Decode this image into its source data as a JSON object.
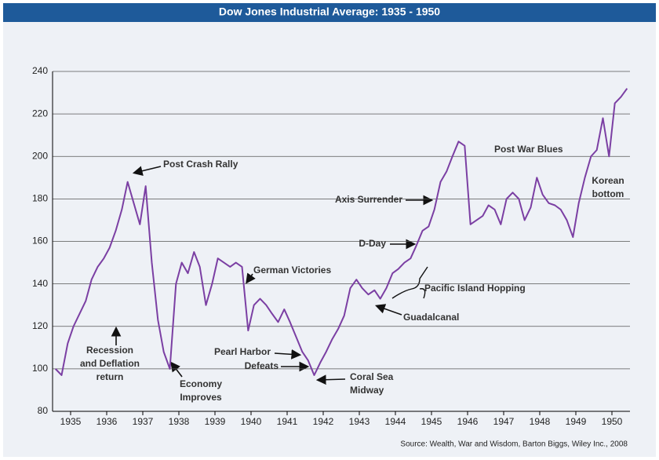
{
  "chart_data": {
    "type": "line",
    "title": "Dow Jones Industrial Average: 1935 - 1950",
    "source": "Source: Wealth, War and Wisdom, Barton Biggs, Wiley Inc., 2008",
    "x": [
      1935.08,
      1935.25,
      1935.42,
      1935.58,
      1935.75,
      1935.92,
      1936.08,
      1936.25,
      1936.42,
      1936.58,
      1936.75,
      1936.92,
      1937.08,
      1937.25,
      1937.42,
      1937.58,
      1937.75,
      1937.92,
      1938.08,
      1938.25,
      1938.42,
      1938.58,
      1938.75,
      1938.92,
      1939.08,
      1939.25,
      1939.42,
      1939.58,
      1939.75,
      1939.92,
      1940.08,
      1940.25,
      1940.42,
      1940.58,
      1940.75,
      1940.92,
      1941.08,
      1941.25,
      1941.42,
      1941.58,
      1941.75,
      1941.92,
      1942.08,
      1942.25,
      1942.42,
      1942.58,
      1942.75,
      1942.92,
      1943.08,
      1943.25,
      1943.42,
      1943.58,
      1943.75,
      1943.92,
      1944.08,
      1944.25,
      1944.42,
      1944.58,
      1944.75,
      1944.92,
      1945.08,
      1945.25,
      1945.42,
      1945.58,
      1945.75,
      1945.92,
      1946.08,
      1946.25,
      1946.42,
      1946.58,
      1946.75,
      1946.92,
      1947.08,
      1947.25,
      1947.42,
      1947.58,
      1947.75,
      1947.92,
      1948.08,
      1948.25,
      1948.42,
      1948.58,
      1948.75,
      1948.92,
      1949.08,
      1949.25,
      1949.42,
      1949.58,
      1949.75,
      1949.92,
      1950.08,
      1950.25,
      1950.42,
      1950.58,
      1950.75,
      1950.92
    ],
    "series": [
      {
        "name": "Dow Jones Industrial Average",
        "color": "#7b3fa3",
        "values": [
          100,
          97,
          112,
          120,
          126,
          132,
          142,
          148,
          152,
          157,
          165,
          175,
          188,
          178,
          168,
          186,
          150,
          123,
          108,
          100,
          140,
          150,
          145,
          155,
          148,
          130,
          140,
          152,
          150,
          148,
          150,
          148,
          118,
          130,
          133,
          130,
          126,
          122,
          128,
          122,
          115,
          108,
          104,
          97,
          103,
          108,
          114,
          119,
          125,
          138,
          142,
          138,
          135,
          137,
          133,
          138,
          145,
          147,
          150,
          152,
          158,
          165,
          167,
          175,
          188,
          193,
          200,
          207,
          205,
          168,
          170,
          172,
          177,
          175,
          168,
          180,
          183,
          180,
          170,
          176,
          190,
          182,
          178,
          177,
          175,
          170,
          162,
          178,
          190,
          200,
          203,
          218,
          200,
          225,
          228,
          232
        ]
      }
    ],
    "xlim": [
      1935,
      1951
    ],
    "xticks": [
      {
        "value": 1935.5,
        "label": "1935"
      },
      {
        "value": 1936.5,
        "label": "1936"
      },
      {
        "value": 1937.5,
        "label": "1937"
      },
      {
        "value": 1938.5,
        "label": "1938"
      },
      {
        "value": 1939.5,
        "label": "1939"
      },
      {
        "value": 1940.5,
        "label": "1940"
      },
      {
        "value": 1941.5,
        "label": "1941"
      },
      {
        "value": 1942.5,
        "label": "1942"
      },
      {
        "value": 1943.5,
        "label": "1943"
      },
      {
        "value": 1944.5,
        "label": "1944"
      },
      {
        "value": 1945.5,
        "label": "1945"
      },
      {
        "value": 1946.5,
        "label": "1946"
      },
      {
        "value": 1947.5,
        "label": "1947"
      },
      {
        "value": 1948.5,
        "label": "1948"
      },
      {
        "value": 1949.5,
        "label": "1949"
      },
      {
        "value": 1950.5,
        "label": "1950"
      }
    ],
    "ylim": [
      80,
      240
    ],
    "yticks": [
      80,
      100,
      120,
      140,
      160,
      180,
      200,
      220,
      240
    ],
    "grid": true,
    "annotations": [
      [
        "Post Crash Rally"
      ],
      [
        "Recession",
        "and Deflation",
        "return"
      ],
      [
        "Economy",
        "Improves"
      ],
      [
        "German Victories"
      ],
      [
        "Pearl Harbor"
      ],
      [
        "Defeats"
      ],
      [
        "Coral Sea",
        "Midway"
      ],
      [
        "Guadalcanal"
      ],
      [
        "Pacific Island Hopping"
      ],
      [
        "D-Day"
      ],
      [
        "Axis Surrender"
      ],
      [
        "Post War Blues"
      ],
      [
        "Korean",
        "bottom"
      ]
    ]
  }
}
